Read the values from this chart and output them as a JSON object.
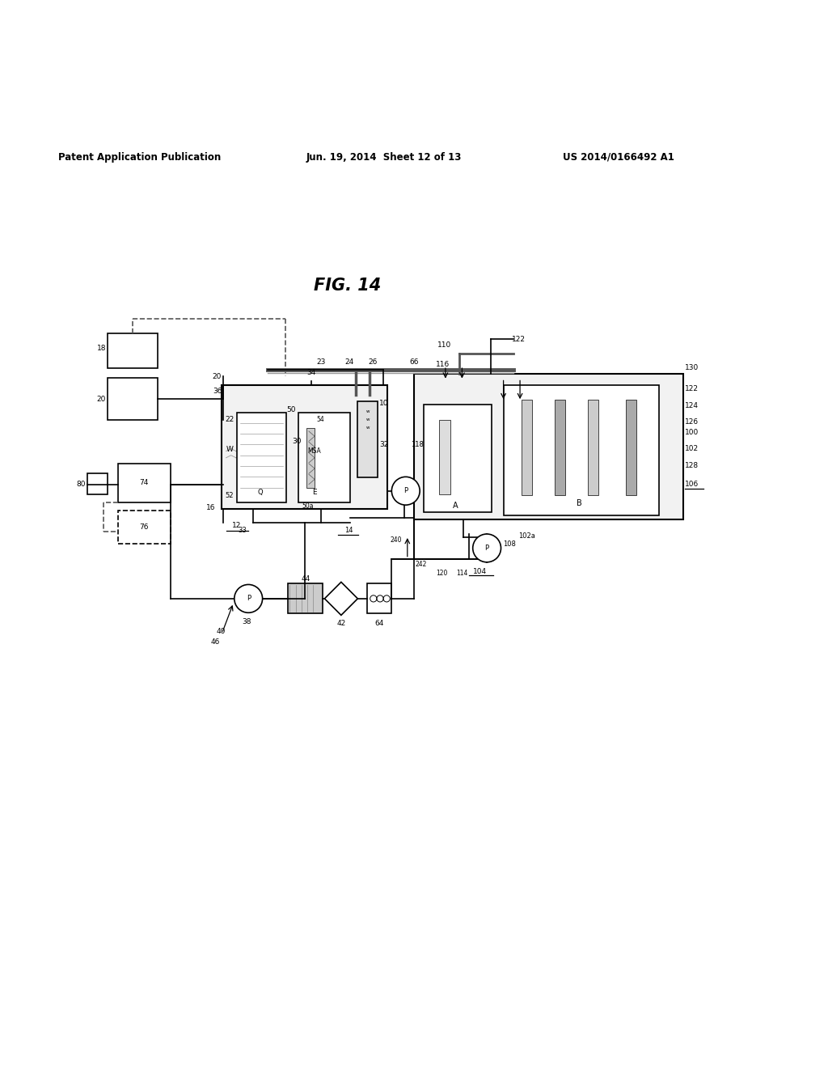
{
  "title_fig": "FIG. 14",
  "header_left": "Patent Application Publication",
  "header_mid": "Jun. 19, 2014  Sheet 12 of 13",
  "header_right": "US 2014/0166492 A1",
  "bg_color": "#ffffff",
  "line_color": "#000000",
  "gray_fill": "#cccccc",
  "light_gray": "#e8e8e8"
}
